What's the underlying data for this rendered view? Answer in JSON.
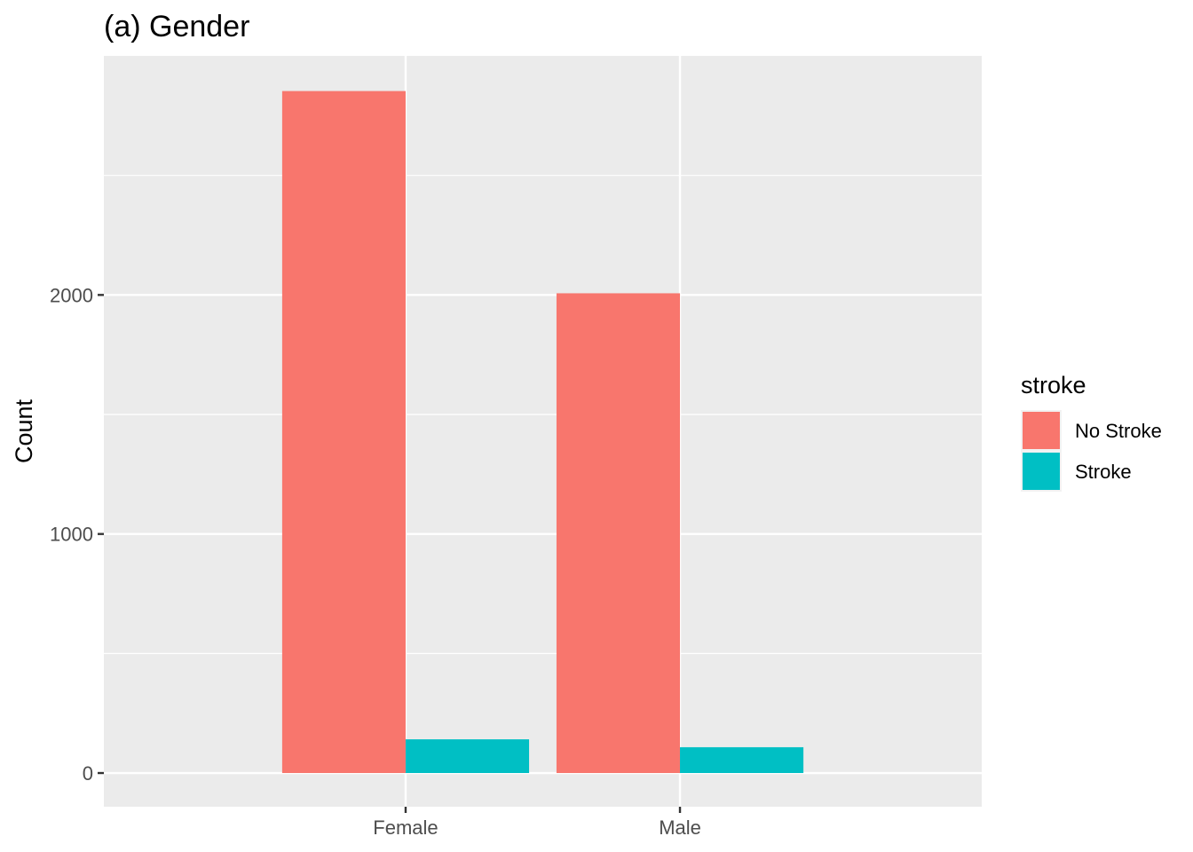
{
  "chart_data": {
    "type": "bar",
    "title": "(a) Gender",
    "xlabel": "",
    "ylabel": "Count",
    "categories": [
      "Female",
      "Male"
    ],
    "series": [
      {
        "name": "No Stroke",
        "values": [
          2853,
          2007
        ],
        "color": "#F8766D"
      },
      {
        "name": "Stroke",
        "values": [
          141,
          108
        ],
        "color": "#00BFC4"
      }
    ],
    "yticks": [
      0,
      1000,
      2000
    ],
    "ylim": [
      -141,
      3000
    ],
    "grid": true,
    "panel_background": "#EBEBEB",
    "legend": {
      "title": "stroke",
      "position": "right"
    }
  }
}
